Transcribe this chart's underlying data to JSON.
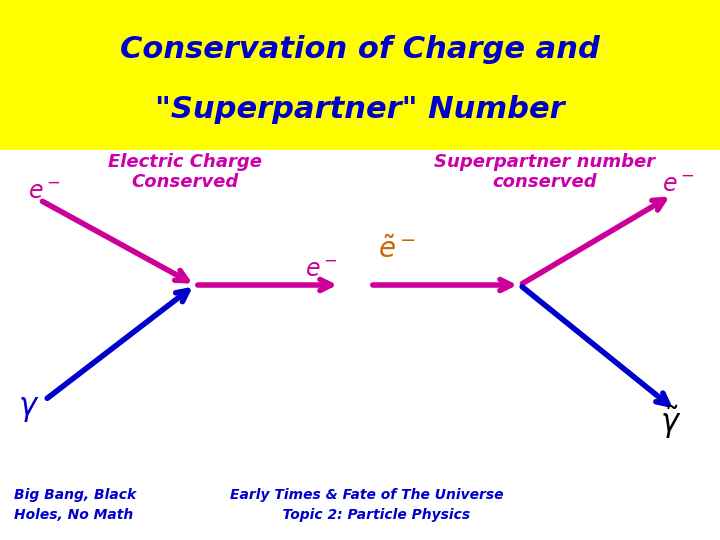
{
  "title_line1": "Conservation of Charge and",
  "title_line2": "\"Superpartner\" Number",
  "title_color": "#0000cc",
  "title_bg_color": "#ffff00",
  "title_fontsize": 22,
  "left_label_line1": "Electric Charge",
  "left_label_line2": "Conserved",
  "right_label_line1": "Superpartner number",
  "right_label_line2": "conserved",
  "label_color": "#cc00aa",
  "label_fontsize": 13,
  "magenta": "#cc0099",
  "blue": "#0000cc",
  "orange": "#cc6600",
  "black": "#000000",
  "bg_color": "#ffffff",
  "footer_left": "Big Bang, Black\nHoles, No Math",
  "footer_right": "Early Times & Fate of The Universe\n    Topic 2: Particle Physics",
  "footer_color": "#0000cc",
  "footer_fontsize": 10
}
